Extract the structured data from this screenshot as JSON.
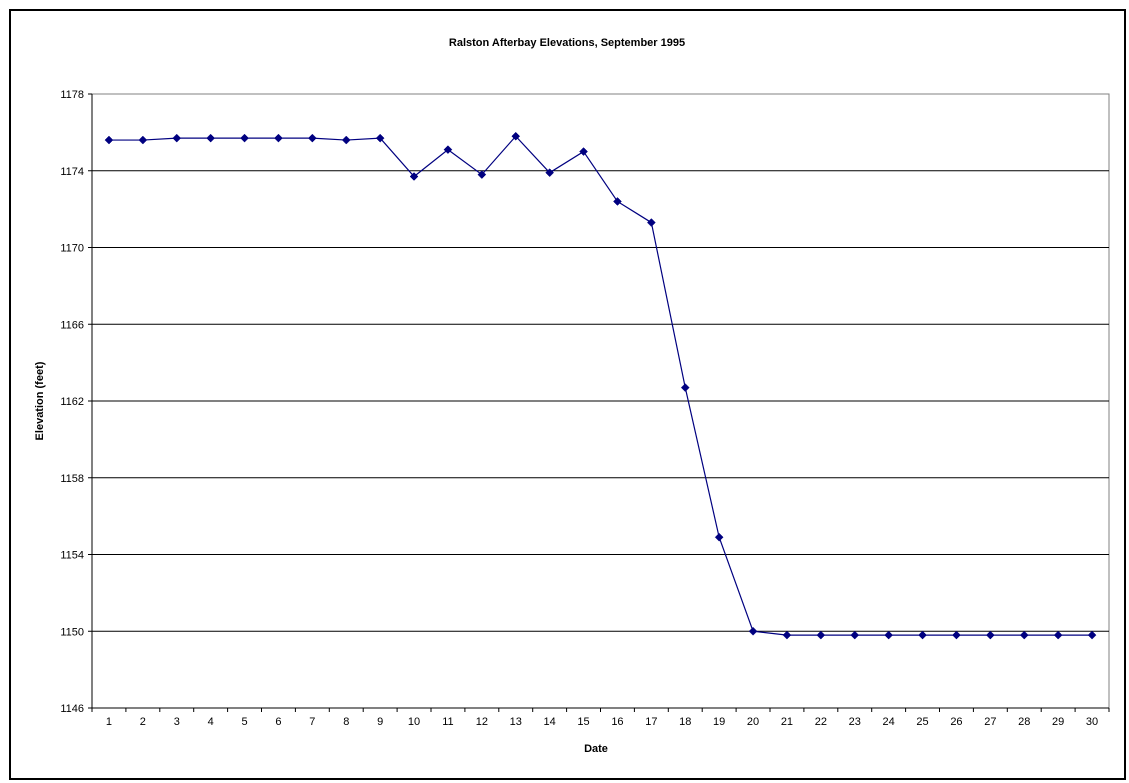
{
  "chart_data": {
    "type": "line",
    "title": "Ralston Afterbay Elevations, September 1995",
    "xlabel": "Date",
    "ylabel": "Elevation (feet)",
    "ylim": [
      1146,
      1178
    ],
    "yticks": [
      1146,
      1150,
      1154,
      1158,
      1162,
      1166,
      1170,
      1174,
      1178
    ],
    "grid": "horizontal",
    "legend": "none",
    "categories": [
      "1",
      "2",
      "3",
      "4",
      "5",
      "6",
      "7",
      "8",
      "9",
      "10",
      "11",
      "12",
      "13",
      "14",
      "15",
      "16",
      "17",
      "18",
      "19",
      "20",
      "21",
      "22",
      "23",
      "24",
      "25",
      "26",
      "27",
      "28",
      "29",
      "30"
    ],
    "series": [
      {
        "color": "#000080",
        "marker": "diamond",
        "values": [
          1175.6,
          1175.6,
          1175.7,
          1175.7,
          1175.7,
          1175.7,
          1175.7,
          1175.6,
          1175.7,
          1173.7,
          1175.1,
          1173.8,
          1175.8,
          1173.9,
          1175.0,
          1172.4,
          1171.3,
          1162.7,
          1154.9,
          1150.0,
          1149.8,
          1149.8,
          1149.8,
          1149.8,
          1149.8,
          1149.8,
          1149.8,
          1149.8,
          1149.8,
          1149.8
        ]
      }
    ]
  }
}
